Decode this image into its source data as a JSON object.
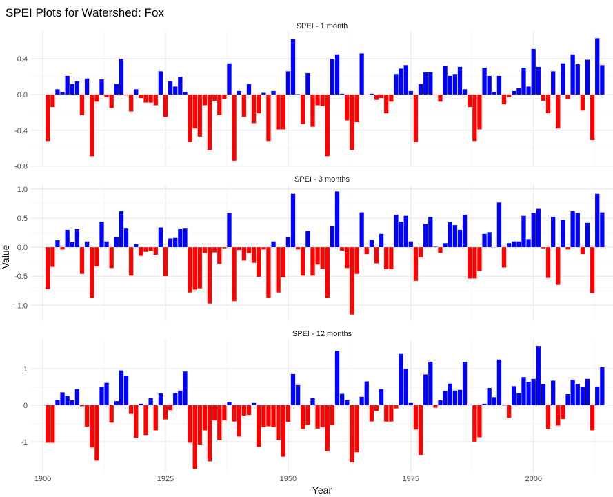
{
  "chart_data": {
    "type": "bar",
    "title": "SPEI Plots for Watershed: Fox",
    "xlabel": "Year",
    "ylabel": "Value",
    "xlim": [
      1897.6,
      2016.2
    ],
    "x_ticks": [
      1900,
      1925,
      1950,
      1975,
      2000
    ],
    "grid": true,
    "colors": {
      "positive": "#0000FF",
      "negative": "#FF0000"
    },
    "x_start": 1901,
    "x_end": 2014,
    "panels": [
      {
        "title": "SPEI - 1 month",
        "ylim": [
          -0.81,
          0.71
        ],
        "y_ticks": [
          0.4,
          0.0,
          -0.4,
          -0.8
        ],
        "y_tick_labels": [
          "0.4",
          "0.0",
          "-0.4",
          "-0.8"
        ],
        "values": [
          -0.52,
          -0.14,
          0.06,
          0.03,
          0.21,
          0.12,
          0.15,
          -0.23,
          0.18,
          -0.69,
          -0.08,
          0.17,
          -0.03,
          -0.15,
          0.12,
          0.4,
          -0.01,
          -0.19,
          0.06,
          -0.04,
          -0.09,
          -0.09,
          -0.12,
          0.26,
          -0.25,
          0.15,
          0.09,
          0.2,
          0.03,
          -0.53,
          -0.38,
          -0.47,
          -0.12,
          -0.62,
          -0.07,
          -0.23,
          -0.05,
          0.35,
          -0.74,
          0.04,
          -0.25,
          0.12,
          -0.32,
          -0.21,
          0.02,
          -0.52,
          0.04,
          -0.39,
          -0.39,
          0.26,
          0.62,
          0.005,
          -0.33,
          0.24,
          -0.36,
          -0.12,
          -0.13,
          -0.69,
          0.4,
          0.45,
          0.01,
          -0.29,
          -0.62,
          -0.31,
          0.46,
          -0.005,
          0.01,
          -0.06,
          -0.04,
          -0.21,
          -0.08,
          0.23,
          0.29,
          0.33,
          0.04,
          -0.53,
          0.12,
          0.25,
          0.25,
          -0.005,
          -0.08,
          0.32,
          0.21,
          0.23,
          0.31,
          0.06,
          -0.14,
          -0.52,
          -0.39,
          0.3,
          0.21,
          0.03,
          0.21,
          -0.11,
          -0.03,
          0.04,
          0.07,
          0.3,
          0.09,
          0.51,
          0.31,
          -0.07,
          -0.21,
          0.26,
          -0.38,
          0.35,
          -0.05,
          0.45,
          0.34,
          -0.18,
          0.39,
          -0.51,
          0.63,
          0.33
        ]
      },
      {
        "title": "SPEI - 3 months",
        "ylim": [
          -1.27,
          1.07
        ],
        "y_ticks": [
          1.0,
          0.5,
          0.0,
          -0.5,
          -1.0
        ],
        "y_tick_labels": [
          "1.0",
          "0.5",
          "0.0",
          "-0.5",
          "-1.0"
        ],
        "values": [
          -0.72,
          -0.34,
          0.12,
          -0.04,
          0.3,
          0.09,
          0.31,
          -0.46,
          0.1,
          -0.87,
          -0.33,
          0.44,
          0.1,
          -0.36,
          0.17,
          0.62,
          0.32,
          -0.49,
          0.05,
          -0.15,
          -0.08,
          -0.06,
          -0.13,
          0.34,
          -0.5,
          0.15,
          0.16,
          0.31,
          0.32,
          -0.78,
          -0.73,
          -0.71,
          -0.1,
          -0.97,
          -0.09,
          -0.29,
          -0.02,
          0.59,
          -0.93,
          -0.05,
          -0.23,
          -0.1,
          -0.27,
          -0.51,
          -0.04,
          -0.87,
          0.1,
          -0.78,
          -0.52,
          0.17,
          0.92,
          -0.04,
          -0.49,
          0.28,
          -0.49,
          -0.3,
          -0.37,
          -0.87,
          0.36,
          0.96,
          -0.06,
          -0.36,
          -1.16,
          -0.46,
          0.6,
          -0.12,
          0.13,
          -0.28,
          0.23,
          -0.38,
          -0.38,
          0.56,
          0.44,
          0.54,
          0.1,
          -0.58,
          -0.18,
          0.4,
          0.52,
          0.01,
          -0.1,
          0.07,
          0.43,
          0.38,
          0.3,
          0.56,
          -0.54,
          -0.54,
          -0.41,
          0.23,
          0.26,
          0.0,
          0.77,
          -0.35,
          0.07,
          0.1,
          0.1,
          0.54,
          0.14,
          0.59,
          0.66,
          -0.02,
          -0.53,
          0.52,
          -0.65,
          0.47,
          -0.04,
          0.62,
          0.59,
          -0.12,
          0.42,
          -0.79,
          0.92,
          0.6
        ]
      },
      {
        "title": "SPEI - 12 months",
        "ylim": [
          -1.85,
          1.79
        ],
        "y_ticks": [
          1,
          0,
          -1
        ],
        "y_tick_labels": [
          "1",
          "0",
          "-1"
        ],
        "values": [
          -1.03,
          -1.03,
          0.14,
          0.35,
          0.25,
          0.13,
          0.44,
          -0.03,
          -0.59,
          -1.16,
          -1.52,
          0.5,
          0.61,
          -0.48,
          0.11,
          0.95,
          0.81,
          -0.24,
          -0.89,
          0.04,
          -0.82,
          0.19,
          -0.69,
          0.32,
          -0.39,
          -0.14,
          0.33,
          0.4,
          0.92,
          -1.03,
          -1.74,
          -1.08,
          -0.69,
          -1.54,
          -0.42,
          -0.96,
          -0.42,
          0.09,
          -0.45,
          -0.86,
          -0.29,
          -0.27,
          0.06,
          -1.14,
          -0.6,
          -0.58,
          -0.6,
          -0.95,
          -1.41,
          -0.46,
          0.85,
          0.55,
          -0.65,
          -0.54,
          0.19,
          -0.64,
          -0.61,
          -1.26,
          -0.55,
          1.48,
          0.31,
          0.13,
          -1.57,
          -1.29,
          0.23,
          0.65,
          -0.45,
          -0.16,
          0.44,
          -0.45,
          -0.45,
          -0.09,
          1.4,
          0.99,
          0.06,
          -0.67,
          -1.36,
          0.84,
          1.19,
          -0.07,
          0.13,
          0.39,
          0.59,
          0.4,
          0.42,
          1.18,
          0.02,
          -1.0,
          -0.88,
          0.04,
          0.47,
          0.22,
          1.25,
          -0.01,
          -0.35,
          0.52,
          0.33,
          0.77,
          0.64,
          0.72,
          1.62,
          0.58,
          -0.65,
          0.67,
          -0.56,
          -0.38,
          0.3,
          0.7,
          0.58,
          0.5,
          0.72,
          -0.69,
          0.51,
          1.04
        ]
      }
    ]
  }
}
